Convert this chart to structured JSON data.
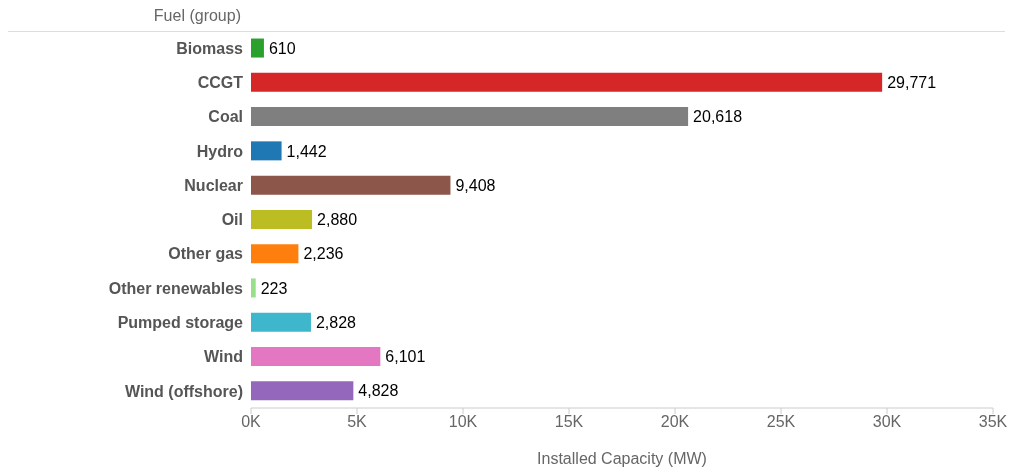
{
  "chart_data": {
    "type": "bar",
    "orientation": "horizontal",
    "ylabel": "Fuel (group)",
    "xlabel": "Installed Capacity (MW)",
    "categories": [
      "Biomass",
      "CCGT",
      "Coal",
      "Hydro",
      "Nuclear",
      "Oil",
      "Other gas",
      "Other renewables",
      "Pumped storage",
      "Wind",
      "Wind (offshore)"
    ],
    "values": [
      610,
      29771,
      20618,
      1442,
      9408,
      2880,
      2236,
      223,
      2828,
      6101,
      4828
    ],
    "colors": [
      "#2ca02c",
      "#d62728",
      "#7f7f7f",
      "#1f77b4",
      "#8c564b",
      "#bcbd22",
      "#ff7f0e",
      "#98df8a",
      "#3eb6cc",
      "#e377c2",
      "#9467bd"
    ],
    "xlim": [
      0,
      35000
    ],
    "xticks": [
      {
        "value": 0,
        "label": "0K"
      },
      {
        "value": 5000,
        "label": "5K"
      },
      {
        "value": 10000,
        "label": "10K"
      },
      {
        "value": 15000,
        "label": "15K"
      },
      {
        "value": 20000,
        "label": "20K"
      },
      {
        "value": 25000,
        "label": "25K"
      },
      {
        "value": 30000,
        "label": "30K"
      },
      {
        "value": 35000,
        "label": "35K"
      }
    ],
    "value_labels": [
      "610",
      "29,771",
      "20,618",
      "1,442",
      "9,408",
      "2,880",
      "2,236",
      "223",
      "2,828",
      "6,101",
      "4,828"
    ],
    "grid": false,
    "legend": false
  }
}
